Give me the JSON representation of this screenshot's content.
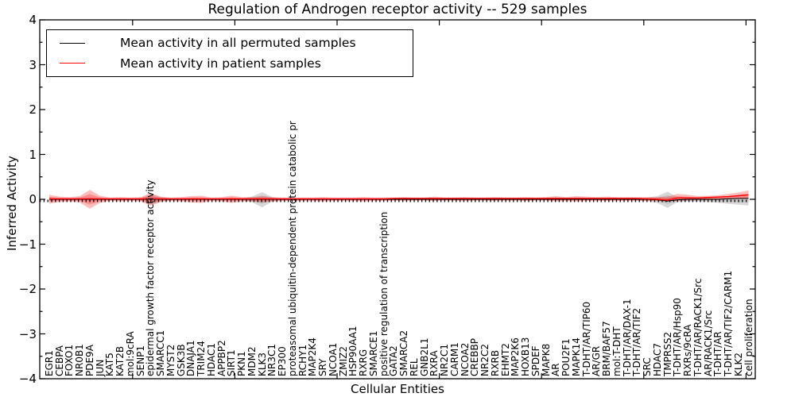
{
  "title": "Regulation of Androgen receptor activity -- 529 samples",
  "axes": {
    "xlabel": "Cellular Entities",
    "ylabel": "Inferred Activity",
    "yticklabels": [
      "4",
      "3",
      "2",
      "1",
      "0",
      "−1",
      "−2",
      "−3",
      "−4"
    ],
    "yticks": [
      4,
      3,
      2,
      1,
      0,
      -1,
      -2,
      -3,
      -4
    ]
  },
  "chart_data": {
    "type": "line",
    "title": "Regulation of Androgen receptor activity -- 529 samples",
    "xlabel": "Cellular Entities",
    "ylabel": "Inferred Activity",
    "ylim": [
      -4,
      4
    ],
    "grid": false,
    "legend_position": "upper left",
    "categories": [
      "EGR1",
      "CEBPA",
      "FOXO1",
      "NR0B1",
      "PDE9A",
      "JUN",
      "KAT5",
      "KAT2B",
      "mol:9cRA",
      "SENP1",
      "epidermal growth factor receptor activity",
      "SMARCC1",
      "MYST2",
      "GSK3B",
      "DNAJA1",
      "TRIM24",
      "HDAC1",
      "APPBP2",
      "SIRT1",
      "PKN1",
      "MDM2",
      "KLK3",
      "NR3C1",
      "EP300",
      "proteasomal ubiquitin-dependent protein catabolic pr",
      "RCHY1",
      "MAP2K4",
      "SRY",
      "NCOA1",
      "ZMIZ2",
      "HSP90AA1",
      "RXRG",
      "SMARCE1",
      "positive regulation of transcription",
      "GATA2",
      "SMARCA2",
      "REL",
      "GNB2L1",
      "RXRA",
      "NR2C1",
      "CARM1",
      "NCOA2",
      "CREBBP",
      "NR2C2",
      "RXRB",
      "EHMT2",
      "MAP2K6",
      "HOXB13",
      "SPDEF",
      "MAPK8",
      "AR",
      "POU2F1",
      "MAPK14",
      "T-DHT/AR/TIP60",
      "AR/GR",
      "BRM/BAF57",
      "mol:T-DHT",
      "T-DHT/AR/DAX-1",
      "T-DHT/AR/TIF2",
      "SRC",
      "HDAC7",
      "TMPRSS2",
      "T-DHT/AR/Hsp90",
      "RXRs/9cRA",
      "T-DHT/AR/RACK1/Src",
      "AR/RACK1/Src",
      "T-DHT/AR",
      "T-DHT/AR/TIF2/CARM1",
      "KLK2",
      "cell proliferation"
    ],
    "series": [
      {
        "name": "Mean activity in all permuted samples",
        "color": "#000000",
        "band_color": "#999999",
        "values": [
          0,
          0,
          0,
          0,
          0,
          0,
          0,
          0,
          0,
          0,
          0,
          0,
          0,
          0,
          0,
          0,
          0,
          0,
          0,
          0,
          0,
          0,
          0,
          0,
          0,
          0,
          0,
          0,
          0,
          0,
          0,
          0,
          0,
          0,
          0,
          0,
          0,
          0,
          0,
          0,
          0,
          0,
          0,
          0,
          0,
          0,
          0,
          0,
          0,
          0,
          0,
          0,
          0,
          0,
          0,
          0,
          0,
          0,
          0,
          0,
          -0.01,
          -0.04,
          -0.01,
          0,
          0,
          0,
          0,
          0.01,
          0.02,
          0.02
        ],
        "band_upper": [
          0.03,
          0.02,
          0.02,
          0.02,
          0.04,
          0.02,
          0.02,
          0.02,
          0.02,
          0.02,
          0.12,
          0.05,
          0.02,
          0.02,
          0.02,
          0.02,
          0.02,
          0.02,
          0.02,
          0.02,
          0.06,
          0.16,
          0.05,
          0.02,
          0.02,
          0.02,
          0.02,
          0.02,
          0.02,
          0.02,
          0.02,
          0.02,
          0.02,
          0.02,
          0.02,
          0.02,
          0.02,
          0.02,
          0.02,
          0.02,
          0.02,
          0.02,
          0.02,
          0.02,
          0.02,
          0.02,
          0.02,
          0.02,
          0.02,
          0.02,
          0.02,
          0.02,
          0.02,
          0.02,
          0.02,
          0.02,
          0.02,
          0.02,
          0.02,
          0.04,
          0.07,
          0.17,
          0.05,
          0.04,
          0.03,
          0.03,
          0.02,
          0.03,
          0.03,
          0.04
        ],
        "band_lower": [
          -0.03,
          -0.02,
          -0.02,
          -0.02,
          -0.04,
          -0.02,
          -0.02,
          -0.02,
          -0.02,
          -0.02,
          -0.12,
          -0.05,
          -0.02,
          -0.02,
          -0.02,
          -0.02,
          -0.02,
          -0.02,
          -0.02,
          -0.02,
          -0.06,
          -0.18,
          -0.05,
          -0.02,
          -0.02,
          -0.02,
          -0.02,
          -0.02,
          -0.02,
          -0.02,
          -0.02,
          -0.02,
          -0.02,
          -0.02,
          -0.02,
          -0.02,
          -0.02,
          -0.02,
          -0.02,
          -0.02,
          -0.02,
          -0.02,
          -0.02,
          -0.02,
          -0.02,
          -0.02,
          -0.02,
          -0.02,
          -0.02,
          -0.02,
          -0.02,
          -0.02,
          -0.02,
          -0.02,
          -0.02,
          -0.02,
          -0.02,
          -0.02,
          -0.02,
          -0.04,
          -0.08,
          -0.19,
          -0.06,
          -0.05,
          -0.05,
          -0.06,
          -0.08,
          -0.1,
          -0.12,
          -0.14
        ]
      },
      {
        "name": "Mean activity in patient samples",
        "color": "#ff0000",
        "band_color": "#ff3333",
        "values": [
          0.01,
          0.01,
          0.01,
          0.01,
          0.01,
          0.01,
          0.01,
          0.01,
          0.01,
          0.01,
          0.01,
          0.01,
          0.01,
          0.01,
          0.01,
          0.01,
          0.01,
          0.01,
          0.01,
          0.01,
          0.01,
          0.01,
          0.01,
          0.01,
          0.01,
          0.01,
          0.01,
          0.01,
          0.01,
          0.01,
          0.01,
          0.01,
          0.01,
          0.01,
          0.02,
          0.02,
          0.02,
          0.02,
          0.02,
          0.02,
          0.02,
          0.02,
          0.02,
          0.02,
          0.02,
          0.02,
          0.02,
          0.02,
          0.02,
          0.02,
          0.02,
          0.02,
          0.02,
          0.02,
          0.02,
          0.02,
          0.02,
          0.02,
          0.02,
          0.01,
          0.0,
          -0.02,
          0.03,
          0.03,
          0.03,
          0.04,
          0.05,
          0.06,
          0.08,
          0.1
        ],
        "band_upper": [
          0.1,
          0.06,
          0.05,
          0.07,
          0.21,
          0.08,
          0.04,
          0.05,
          0.04,
          0.05,
          0.14,
          0.06,
          0.04,
          0.05,
          0.07,
          0.08,
          0.04,
          0.05,
          0.08,
          0.05,
          0.05,
          0.07,
          0.05,
          0.04,
          0.04,
          0.04,
          0.04,
          0.05,
          0.04,
          0.04,
          0.04,
          0.05,
          0.04,
          0.04,
          0.04,
          0.05,
          0.04,
          0.04,
          0.06,
          0.04,
          0.04,
          0.05,
          0.04,
          0.04,
          0.05,
          0.04,
          0.04,
          0.05,
          0.04,
          0.05,
          0.07,
          0.05,
          0.07,
          0.06,
          0.05,
          0.06,
          0.05,
          0.05,
          0.05,
          0.05,
          0.05,
          0.06,
          0.12,
          0.1,
          0.07,
          0.08,
          0.09,
          0.12,
          0.15,
          0.2
        ],
        "band_lower": [
          -0.1,
          -0.06,
          -0.05,
          -0.07,
          -0.21,
          -0.08,
          -0.04,
          -0.05,
          -0.04,
          -0.05,
          -0.14,
          -0.06,
          -0.04,
          -0.05,
          -0.07,
          -0.08,
          -0.04,
          -0.05,
          -0.08,
          -0.05,
          -0.05,
          -0.07,
          -0.05,
          -0.04,
          -0.04,
          -0.04,
          -0.04,
          -0.05,
          -0.04,
          -0.04,
          -0.04,
          -0.05,
          -0.04,
          -0.04,
          -0.03,
          -0.04,
          -0.03,
          -0.03,
          -0.04,
          -0.03,
          -0.03,
          -0.04,
          -0.03,
          -0.03,
          -0.04,
          -0.03,
          -0.03,
          -0.04,
          -0.03,
          -0.03,
          -0.05,
          -0.04,
          -0.05,
          -0.04,
          -0.04,
          -0.04,
          -0.04,
          -0.04,
          -0.04,
          -0.04,
          -0.04,
          -0.05,
          -0.04,
          -0.03,
          -0.02,
          -0.02,
          0.0,
          0.01,
          0.02,
          0.03
        ]
      }
    ]
  }
}
